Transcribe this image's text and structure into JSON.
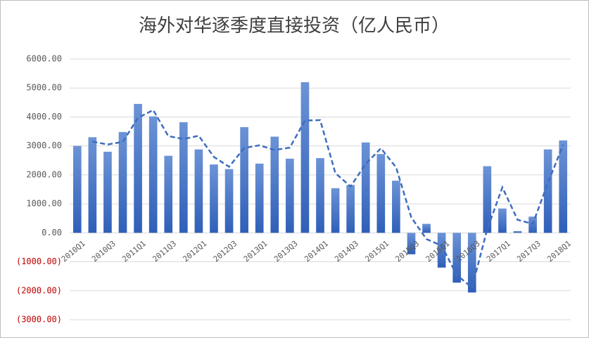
{
  "chart_data": {
    "type": "bar",
    "title": "海外对华逐季度直接投资（亿人民币）",
    "categories": [
      "2010Q1",
      null,
      "2010Q3",
      null,
      "2011Q1",
      null,
      "2011Q3",
      null,
      "2012Q1",
      null,
      "2012Q3",
      null,
      "2013Q1",
      null,
      "2013Q3",
      null,
      "2014Q1",
      null,
      "2014Q3",
      null,
      "2015Q1",
      null,
      "2015Q3",
      null,
      "2016Q1",
      null,
      "2016Q3",
      null,
      "2017Q1",
      null,
      "2017Q3",
      null,
      "2018Q1"
    ],
    "series": [
      {
        "type": "bar",
        "color": "#4472c4",
        "values": [
          3000,
          3300,
          2800,
          3480,
          4450,
          4020,
          2660,
          3820,
          2880,
          2360,
          2200,
          3650,
          2390,
          3320,
          2560,
          5200,
          2580,
          1540,
          1650,
          3120,
          2720,
          1800,
          -740,
          310,
          -1200,
          -1720,
          -2060,
          2300,
          840,
          60,
          560,
          2880,
          3190
        ]
      },
      {
        "type": "line",
        "dashed": true,
        "color": "#3e6dbd",
        "values": [
          null,
          3150,
          3050,
          3140,
          3970,
          4240,
          3340,
          3240,
          3350,
          2620,
          2280,
          2930,
          3020,
          2860,
          2940,
          3880,
          3890,
          2060,
          1600,
          2380,
          2920,
          2260,
          530,
          -215,
          -445,
          -1460,
          -1890,
          120,
          1570,
          450,
          310,
          1720,
          3040
        ]
      }
    ],
    "ylim": [
      -3000,
      6000
    ],
    "yticks": [
      {
        "value": -3000,
        "label": "(3000.00)"
      },
      {
        "value": -2000,
        "label": "(2000.00)"
      },
      {
        "value": -1000,
        "label": "(1000.00)"
      },
      {
        "value": 0,
        "label": "0.00"
      },
      {
        "value": 1000,
        "label": "1000.00"
      },
      {
        "value": 2000,
        "label": "2000.00"
      },
      {
        "value": 3000,
        "label": "3000.00"
      },
      {
        "value": 4000,
        "label": "4000.00"
      },
      {
        "value": 5000,
        "label": "5000.00"
      },
      {
        "value": 6000,
        "label": "6000.00"
      }
    ],
    "negative_tick_color": "#c00000",
    "grid": true
  }
}
